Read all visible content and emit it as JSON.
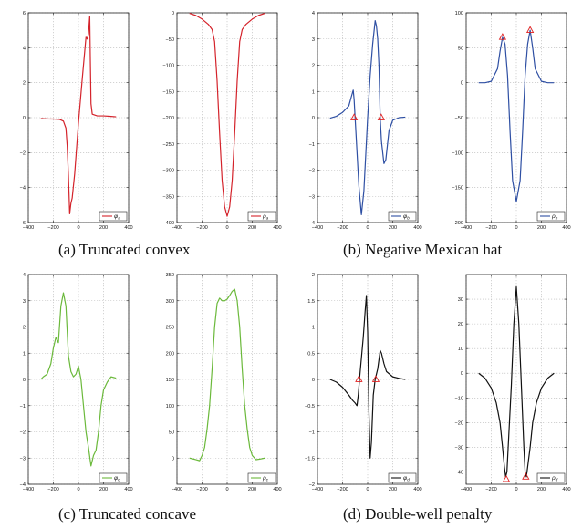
{
  "captions": [
    "(a)  Truncated convex",
    "(b)  Negative Mexican hat",
    "(c)  Truncated concave",
    "(d)  Double-well penalty"
  ],
  "chart_data": [
    {
      "type": "line",
      "legend": "φa",
      "legend_main": "φ",
      "legend_sub": "a",
      "legend_position": "bottom-right",
      "color": "#d4232b",
      "grid": true,
      "xlim": [
        -400,
        400
      ],
      "ylim": [
        -6,
        6
      ],
      "xticks": [
        -400,
        -200,
        0,
        200,
        400
      ],
      "yticks": [
        -6,
        -4,
        -2,
        0,
        2,
        4,
        6
      ],
      "ytick_labels": [
        "−6",
        "−4",
        "−2",
        "0",
        "2",
        "4",
        "6"
      ],
      "xtick_labels": [
        "−400",
        "−200",
        "0",
        "200",
        "400"
      ],
      "x": [
        -300,
        -250,
        -200,
        -150,
        -120,
        -100,
        -90,
        -80,
        -70,
        -60,
        -50,
        -30,
        0,
        30,
        50,
        60,
        70,
        80,
        90,
        95,
        100,
        110,
        150,
        200,
        250,
        300
      ],
      "y": [
        -0.05,
        -0.07,
        -0.08,
        -0.1,
        -0.2,
        -0.6,
        -1.6,
        -3.3,
        -5.5,
        -4.9,
        -4.6,
        -3.2,
        -0.3,
        2.2,
        3.8,
        4.6,
        4.5,
        4.8,
        5.8,
        3.2,
        0.8,
        0.2,
        0.1,
        0.1,
        0.08,
        0.05
      ]
    },
    {
      "type": "line",
      "legend": "ρa",
      "legend_main": "ρ",
      "legend_sub": "a",
      "legend_position": "bottom-right",
      "color": "#d4232b",
      "grid": true,
      "xlim": [
        -400,
        400
      ],
      "ylim": [
        -400,
        0
      ],
      "xticks": [
        -400,
        -200,
        0,
        200,
        400
      ],
      "yticks": [
        -400,
        -350,
        -300,
        -250,
        -200,
        -150,
        -100,
        -50,
        0
      ],
      "ytick_labels": [
        "−400",
        "−350",
        "−300",
        "−250",
        "−200",
        "−150",
        "−100",
        "−50",
        "0"
      ],
      "xtick_labels": [
        "−400",
        "−200",
        "0",
        "200",
        "400"
      ],
      "x": [
        -300,
        -250,
        -200,
        -150,
        -120,
        -100,
        -80,
        -60,
        -40,
        -20,
        0,
        20,
        40,
        60,
        80,
        100,
        120,
        150,
        200,
        250,
        300
      ],
      "y": [
        -1,
        -5,
        -12,
        -22,
        -32,
        -55,
        -130,
        -230,
        -320,
        -370,
        -388,
        -370,
        -320,
        -230,
        -130,
        -55,
        -32,
        -22,
        -12,
        -5,
        -1
      ]
    },
    {
      "type": "line",
      "legend": "φb",
      "legend_main": "φ",
      "legend_sub": "b",
      "legend_position": "bottom-right",
      "color": "#2e4fa3",
      "grid": true,
      "xlim": [
        -400,
        400
      ],
      "ylim": [
        -4,
        4
      ],
      "xticks": [
        -400,
        -200,
        0,
        200,
        400
      ],
      "yticks": [
        -4,
        -3,
        -2,
        -1,
        0,
        1,
        2,
        3,
        4
      ],
      "ytick_labels": [
        "−4",
        "−3",
        "−2",
        "−1",
        "0",
        "1",
        "2",
        "3",
        "4"
      ],
      "xtick_labels": [
        "−400",
        "−200",
        "0",
        "200",
        "400"
      ],
      "x": [
        -300,
        -250,
        -200,
        -150,
        -130,
        -115,
        -108,
        -100,
        -85,
        -70,
        -50,
        -30,
        0,
        20,
        40,
        60,
        70,
        80,
        90,
        100,
        110,
        130,
        145,
        170,
        200,
        250,
        300
      ],
      "y": [
        -0.02,
        0.05,
        0.2,
        0.45,
        0.8,
        1.05,
        0.7,
        0.0,
        -1.3,
        -2.6,
        -3.7,
        -2.8,
        0.0,
        1.6,
        2.8,
        3.7,
        3.5,
        3.0,
        2.0,
        0.0,
        -0.9,
        -1.75,
        -1.6,
        -0.5,
        -0.1,
        0.0,
        0.02
      ]
    },
    {
      "type": "line",
      "legend": "ρb",
      "legend_main": "ρ",
      "legend_sub": "b",
      "legend_position": "bottom-right",
      "color": "#2e4fa3",
      "grid": true,
      "xlim": [
        -400,
        400
      ],
      "ylim": [
        -200,
        100
      ],
      "xticks": [
        -400,
        -200,
        0,
        200,
        400
      ],
      "yticks": [
        -200,
        -150,
        -100,
        -50,
        0,
        50,
        100
      ],
      "ytick_labels": [
        "−200",
        "−150",
        "−100",
        "−50",
        "0",
        "50",
        "100"
      ],
      "xtick_labels": [
        "−400",
        "−200",
        "0",
        "200",
        "400"
      ],
      "x": [
        -300,
        -250,
        -200,
        -150,
        -130,
        -110,
        -90,
        -70,
        -50,
        -30,
        0,
        30,
        50,
        70,
        90,
        110,
        130,
        150,
        200,
        250,
        300
      ],
      "y": [
        0,
        0,
        2,
        20,
        45,
        65,
        55,
        10,
        -70,
        -140,
        -170,
        -140,
        -70,
        10,
        55,
        75,
        50,
        20,
        2,
        0,
        0
      ],
      "markers": [
        {
          "x": -110,
          "y": 65
        },
        {
          "x": 110,
          "y": 75
        }
      ]
    },
    {
      "type": "line",
      "legend": "φc",
      "legend_main": "φ",
      "legend_sub": "c",
      "legend_position": "bottom-right",
      "color": "#6bb93b",
      "grid": true,
      "xlim": [
        -400,
        400
      ],
      "ylim": [
        -4,
        4
      ],
      "xticks": [
        -400,
        -200,
        0,
        200,
        400
      ],
      "yticks": [
        -4,
        -3,
        -2,
        -1,
        0,
        1,
        2,
        3,
        4
      ],
      "ytick_labels": [
        "−4",
        "−3",
        "−2",
        "−1",
        "0",
        "1",
        "2",
        "3",
        "4"
      ],
      "xtick_labels": [
        "−400",
        "−200",
        "0",
        "200",
        "400"
      ],
      "x": [
        -300,
        -280,
        -250,
        -220,
        -200,
        -180,
        -160,
        -140,
        -120,
        -100,
        -80,
        -60,
        -40,
        -20,
        0,
        20,
        40,
        60,
        80,
        100,
        120,
        140,
        160,
        180,
        200,
        230,
        260,
        300
      ],
      "y": [
        0,
        0.1,
        0.2,
        0.6,
        1.2,
        1.6,
        1.4,
        2.8,
        3.3,
        2.8,
        0.9,
        0.3,
        0.1,
        0.2,
        0.5,
        0.0,
        -1.0,
        -2.0,
        -2.6,
        -3.3,
        -2.9,
        -2.7,
        -2.0,
        -1.0,
        -0.4,
        -0.1,
        0.1,
        0.05
      ]
    },
    {
      "type": "line",
      "legend": "ρc",
      "legend_main": "ρ",
      "legend_sub": "c",
      "legend_position": "bottom-right",
      "color": "#6bb93b",
      "grid": true,
      "xlim": [
        -400,
        400
      ],
      "ylim": [
        -50,
        350
      ],
      "xticks": [
        -400,
        -200,
        0,
        200,
        400
      ],
      "yticks": [
        0,
        50,
        100,
        150,
        200,
        250,
        300,
        350
      ],
      "ytick_labels": [
        "0",
        "50",
        "100",
        "150",
        "200",
        "250",
        "300",
        "350"
      ],
      "xtick_labels": [
        "−400",
        "−200",
        "0",
        "200",
        "400"
      ],
      "x": [
        -300,
        -250,
        -220,
        -200,
        -180,
        -160,
        -140,
        -120,
        -100,
        -80,
        -60,
        -40,
        -20,
        0,
        20,
        40,
        60,
        80,
        100,
        120,
        140,
        160,
        180,
        200,
        230,
        260,
        300
      ],
      "y": [
        0,
        -3,
        -5,
        5,
        20,
        55,
        100,
        170,
        250,
        295,
        305,
        300,
        300,
        303,
        310,
        318,
        322,
        300,
        250,
        170,
        100,
        55,
        20,
        5,
        -3,
        -2,
        0
      ]
    },
    {
      "type": "line",
      "legend": "φd",
      "legend_main": "φ",
      "legend_sub": "d",
      "legend_position": "bottom-right",
      "color": "#111111",
      "grid": true,
      "xlim": [
        -400,
        400
      ],
      "ylim": [
        -2,
        2
      ],
      "xticks": [
        -400,
        -200,
        0,
        200,
        400
      ],
      "yticks": [
        -2,
        -1.5,
        -1,
        -0.5,
        0,
        0.5,
        1,
        1.5,
        2
      ],
      "ytick_labels": [
        "−2",
        "−1.5",
        "−1",
        "−0.5",
        "0",
        "0.5",
        "1",
        "1.5",
        "2"
      ],
      "xtick_labels": [
        "−400",
        "−200",
        "0",
        "200",
        "400"
      ],
      "x": [
        -300,
        -250,
        -200,
        -150,
        -120,
        -100,
        -85,
        -75,
        -65,
        -50,
        -35,
        -20,
        -10,
        0,
        10,
        20,
        30,
        45,
        60,
        80,
        100,
        110,
        130,
        150,
        200,
        250,
        300
      ],
      "y": [
        0.0,
        -0.05,
        -0.15,
        -0.3,
        -0.4,
        -0.45,
        -0.5,
        -0.3,
        0.0,
        0.4,
        0.8,
        1.3,
        1.6,
        0.9,
        -0.6,
        -1.5,
        -1.2,
        -0.3,
        0.0,
        0.2,
        0.55,
        0.5,
        0.3,
        0.15,
        0.05,
        0.02,
        0.0
      ]
    },
    {
      "type": "line",
      "legend": "ρd",
      "legend_main": "ρ",
      "legend_sub": "d",
      "legend_position": "bottom-right",
      "color": "#111111",
      "grid": true,
      "xlim": [
        -400,
        400
      ],
      "ylim": [
        -45,
        40
      ],
      "xticks": [
        -400,
        -200,
        0,
        200,
        400
      ],
      "yticks": [
        -40,
        -30,
        -20,
        -10,
        0,
        10,
        20,
        30
      ],
      "ytick_labels": [
        "−40",
        "−30",
        "−20",
        "−10",
        "0",
        "10",
        "20",
        "30"
      ],
      "xtick_labels": [
        "−400",
        "−200",
        "0",
        "200",
        "400"
      ],
      "x": [
        -300,
        -250,
        -200,
        -160,
        -130,
        -110,
        -95,
        -85,
        -75,
        -60,
        -40,
        -20,
        0,
        20,
        40,
        60,
        70,
        80,
        90,
        110,
        130,
        160,
        200,
        250,
        300
      ],
      "y": [
        0,
        -2,
        -6,
        -12,
        -20,
        -30,
        -38,
        -42,
        -40,
        -25,
        -5,
        20,
        35,
        20,
        -5,
        -30,
        -40,
        -42,
        -38,
        -30,
        -20,
        -12,
        -6,
        -2,
        0
      ],
      "markers": [
        {
          "x": -80,
          "y": -43
        },
        {
          "x": 75,
          "y": -42
        }
      ]
    }
  ]
}
